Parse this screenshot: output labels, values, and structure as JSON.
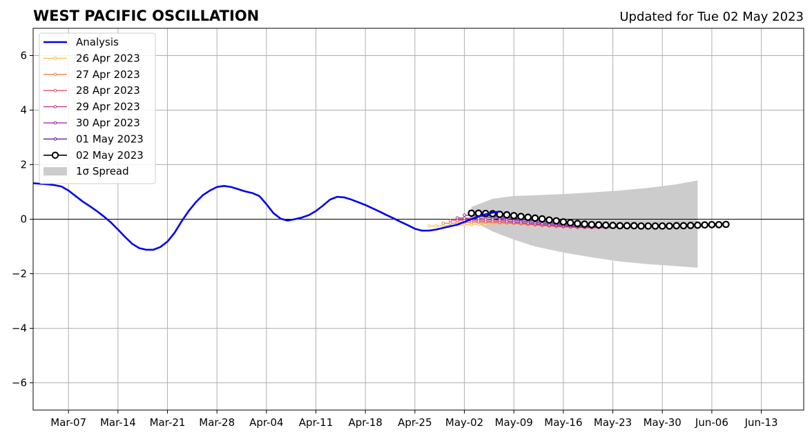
{
  "title": "WEST PACIFIC OSCILLATION",
  "updated": "Updated for Tue 02 May 2023",
  "chart_data": {
    "type": "line",
    "xlabel": "",
    "ylabel": "",
    "ylim": [
      -7,
      7
    ],
    "xlim": [
      "2023-03-02",
      "2023-06-19"
    ],
    "grid": true,
    "legend_position": "top-left",
    "x_tick_labels": [
      "Mar-07",
      "Mar-14",
      "Mar-21",
      "Mar-28",
      "Apr-04",
      "Apr-11",
      "Apr-18",
      "Apr-25",
      "May-02",
      "May-09",
      "May-16",
      "May-23",
      "May-30",
      "Jun-06",
      "Jun-13"
    ],
    "x_tick_dates": [
      "2023-03-07",
      "2023-03-14",
      "2023-03-21",
      "2023-03-28",
      "2023-04-04",
      "2023-04-11",
      "2023-04-18",
      "2023-04-25",
      "2023-05-02",
      "2023-05-09",
      "2023-05-16",
      "2023-05-23",
      "2023-05-30",
      "2023-06-06",
      "2023-06-13"
    ],
    "y_ticks": [
      -6,
      -4,
      -2,
      0,
      2,
      4,
      6
    ],
    "y_tick_labels": [
      "−6",
      "−4",
      "−2",
      "0",
      "2",
      "4",
      "6"
    ],
    "analysis": {
      "name": "Analysis",
      "color": "#0000ee",
      "start": "2023-03-02",
      "values": [
        1.32,
        1.3,
        1.28,
        1.25,
        1.2,
        1.05,
        0.85,
        0.65,
        0.48,
        0.3,
        0.1,
        -0.12,
        -0.38,
        -0.65,
        -0.9,
        -1.06,
        -1.12,
        -1.12,
        -1.02,
        -0.82,
        -0.5,
        -0.08,
        0.3,
        0.62,
        0.88,
        1.05,
        1.18,
        1.22,
        1.18,
        1.1,
        1.02,
        0.96,
        0.85,
        0.55,
        0.22,
        0.02,
        -0.05,
        0.0,
        0.06,
        0.15,
        0.3,
        0.5,
        0.72,
        0.82,
        0.8,
        0.72,
        0.62,
        0.52,
        0.4,
        0.28,
        0.15,
        0.03,
        -0.1,
        -0.22,
        -0.35,
        -0.42,
        -0.42,
        -0.38,
        -0.32,
        -0.26,
        -0.2,
        -0.1,
        0.0,
        0.1,
        0.18,
        0.24,
        0.28
      ]
    },
    "forecasts": [
      {
        "name": "26 Apr 2023",
        "color": "#fbbf45",
        "start": "2023-04-27",
        "values": [
          -0.25,
          -0.25,
          -0.24,
          -0.23,
          -0.22,
          -0.21,
          -0.2,
          -0.19,
          -0.17,
          -0.16,
          -0.15,
          -0.15,
          -0.16,
          -0.18,
          -0.2,
          -0.22,
          -0.24,
          -0.25,
          -0.27,
          -0.28,
          -0.29,
          -0.3,
          -0.3,
          -0.31,
          -0.31,
          -0.3,
          -0.3,
          -0.29,
          -0.28,
          -0.27,
          -0.26,
          -0.25,
          -0.24,
          -0.23,
          -0.22,
          -0.21,
          -0.21,
          -0.2,
          -0.2,
          -0.19
        ]
      },
      {
        "name": "27 Apr 2023",
        "color": "#f57d4a",
        "start": "2023-04-29",
        "values": [
          -0.15,
          -0.15,
          -0.14,
          -0.13,
          -0.12,
          -0.11,
          -0.11,
          -0.12,
          -0.13,
          -0.14,
          -0.15,
          -0.17,
          -0.19,
          -0.21,
          -0.23,
          -0.25,
          -0.27,
          -0.28,
          -0.29,
          -0.3,
          -0.31,
          -0.31,
          -0.31,
          -0.3,
          -0.3,
          -0.29,
          -0.28,
          -0.27,
          -0.26,
          -0.25,
          -0.24,
          -0.23,
          -0.22,
          -0.21,
          -0.2,
          -0.2,
          -0.19,
          -0.19
        ]
      },
      {
        "name": "28 Apr 2023",
        "color": "#e24f66",
        "start": "2023-04-30",
        "values": [
          -0.05,
          -0.05,
          -0.05,
          -0.05,
          -0.06,
          -0.07,
          -0.08,
          -0.1,
          -0.12,
          -0.14,
          -0.16,
          -0.18,
          -0.2,
          -0.22,
          -0.24,
          -0.26,
          -0.28,
          -0.29,
          -0.3,
          -0.31,
          -0.31,
          -0.31,
          -0.31,
          -0.3,
          -0.3,
          -0.29,
          -0.28,
          -0.27,
          -0.26,
          -0.25,
          -0.24,
          -0.23,
          -0.22,
          -0.21,
          -0.2,
          -0.2,
          -0.19
        ]
      },
      {
        "name": "29 Apr 2023",
        "color": "#b83289",
        "start": "2023-05-01",
        "values": [
          0.05,
          0.04,
          0.03,
          0.02,
          0.0,
          -0.02,
          -0.04,
          -0.07,
          -0.1,
          -0.12,
          -0.15,
          -0.17,
          -0.2,
          -0.22,
          -0.24,
          -0.26,
          -0.28,
          -0.29,
          -0.3,
          -0.31,
          -0.31,
          -0.31,
          -0.3,
          -0.3,
          -0.29,
          -0.28,
          -0.27,
          -0.26,
          -0.25,
          -0.24,
          -0.23,
          -0.22,
          -0.21,
          -0.2,
          -0.2,
          -0.19
        ]
      },
      {
        "name": "30 Apr 2023",
        "color": "#8a1fa8",
        "start": "2023-05-02",
        "values": [
          0.15,
          0.13,
          0.11,
          0.09,
          0.06,
          0.03,
          0.0,
          -0.03,
          -0.06,
          -0.09,
          -0.12,
          -0.15,
          -0.17,
          -0.2,
          -0.22,
          -0.24,
          -0.26,
          -0.27,
          -0.28,
          -0.29,
          -0.29,
          -0.29,
          -0.29,
          -0.28,
          -0.28,
          -0.27,
          -0.26,
          -0.25,
          -0.24,
          -0.23,
          -0.22,
          -0.21,
          -0.2,
          -0.2,
          -0.19
        ]
      },
      {
        "name": "01 May 2023",
        "color": "#4b0c8c",
        "start": "2023-05-03",
        "values": [
          0.2,
          0.18,
          0.15,
          0.12,
          0.09,
          0.06,
          0.03,
          0.0,
          -0.03,
          -0.06,
          -0.09,
          -0.12,
          -0.15,
          -0.17,
          -0.19,
          -0.21,
          -0.23,
          -0.24,
          -0.25,
          -0.26,
          -0.26,
          -0.26,
          -0.26,
          -0.26,
          -0.25,
          -0.25,
          -0.24,
          -0.23,
          -0.22,
          -0.21,
          -0.2,
          -0.2,
          -0.19,
          -0.19
        ]
      },
      {
        "name": "02 May 2023",
        "color": "#000000",
        "marker": "open-circle",
        "start": "2023-05-03",
        "values": [
          0.22,
          0.22,
          0.21,
          0.2,
          0.18,
          0.16,
          0.13,
          0.1,
          0.07,
          0.04,
          0.01,
          -0.03,
          -0.06,
          -0.1,
          -0.13,
          -0.16,
          -0.18,
          -0.2,
          -0.21,
          -0.22,
          -0.23,
          -0.24,
          -0.24,
          -0.24,
          -0.25,
          -0.25,
          -0.25,
          -0.25,
          -0.25,
          -0.24,
          -0.24,
          -0.23,
          -0.22,
          -0.21,
          -0.2,
          -0.2,
          -0.19
        ]
      }
    ],
    "spread": {
      "name": "1σ Spread",
      "color": "#cccccc",
      "start": "2023-05-03",
      "dates": [
        "2023-05-03",
        "2023-05-06",
        "2023-05-09",
        "2023-05-12",
        "2023-05-16",
        "2023-05-20",
        "2023-05-24",
        "2023-05-28",
        "2023-06-01",
        "2023-06-04"
      ],
      "upper": [
        0.45,
        0.75,
        0.85,
        0.88,
        0.92,
        0.98,
        1.05,
        1.15,
        1.28,
        1.42
      ],
      "lower": [
        -0.05,
        -0.45,
        -0.75,
        -1.0,
        -1.22,
        -1.4,
        -1.55,
        -1.65,
        -1.72,
        -1.78
      ]
    }
  }
}
